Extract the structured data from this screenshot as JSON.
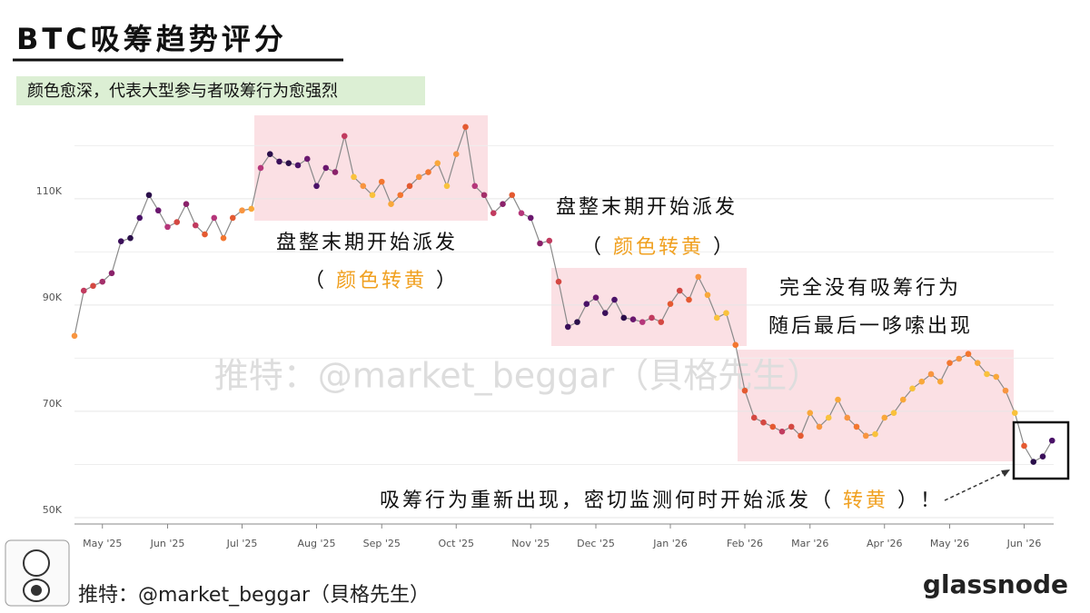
{
  "chart_data": {
    "type": "line",
    "title": "BTC吸筹趋势评分",
    "subtitle": "颜色愈深，代表大型参与者吸筹行为愈强烈",
    "watermark": "推特：@market_beggar（貝格先生）",
    "brand": "glassnode",
    "categories": [
      null,
      null,
      null,
      "May '25",
      null,
      null,
      null,
      null,
      null,
      null,
      "Jun '25",
      null,
      null,
      null,
      null,
      null,
      null,
      null,
      "Jul '25",
      null,
      null,
      null,
      null,
      null,
      null,
      null,
      "Aug '25",
      null,
      null,
      null,
      null,
      null,
      null,
      "Sep '25",
      null,
      null,
      null,
      null,
      null,
      null,
      null,
      "Oct '25",
      null,
      null,
      null,
      null,
      null,
      null,
      null,
      "Nov '25",
      null,
      null,
      null,
      null,
      null,
      null,
      "Dec '25",
      null,
      null,
      null,
      null,
      null,
      null,
      null,
      "Jan '26",
      null,
      null,
      null,
      null,
      null,
      null,
      null,
      "Feb '26",
      null,
      null,
      null,
      null,
      null,
      null,
      "Mar '26",
      null,
      null,
      null,
      null,
      null,
      null,
      null,
      "Apr '26",
      null,
      null,
      null,
      null,
      null,
      null,
      "May '26",
      null,
      null,
      null,
      null,
      null,
      null,
      null,
      "Jun '26",
      null,
      null,
      null
    ],
    "values": [
      84.2,
      92.7,
      93.6,
      94.4,
      96,
      102,
      102.6,
      106.4,
      110.7,
      107.8,
      104.7,
      105.6,
      109,
      105,
      103.3,
      106.4,
      102.6,
      106.4,
      107.8,
      108.1,
      115.8,
      118.4,
      117,
      116.7,
      116.3,
      117.5,
      112.4,
      115.8,
      115,
      121.8,
      114.1,
      112.4,
      110.7,
      113.2,
      109,
      110.7,
      112.4,
      114.1,
      115,
      116.7,
      112.4,
      118.4,
      123.5,
      112.4,
      110.7,
      107.3,
      109,
      110.7,
      107.3,
      106.4,
      101.6,
      102.1,
      94.4,
      85.9,
      86.8,
      90.2,
      91.4,
      88.5,
      91,
      87.6,
      87.3,
      86.8,
      87.6,
      86.8,
      90.2,
      92.7,
      91,
      95.3,
      91.9,
      87.6,
      88.5,
      82.5,
      73.9,
      68.8,
      67.9,
      67.1,
      66.2,
      67.1,
      65.4,
      69.7,
      67.1,
      68.8,
      72.2,
      68.8,
      67.1,
      65.4,
      65.7,
      68.8,
      69.7,
      72.2,
      74.3,
      75.6,
      77,
      75.6,
      79.1,
      79.9,
      80.8,
      79.1,
      77,
      76.5,
      73.9,
      69.7,
      63.5,
      60.5,
      61.5,
      64.5
    ],
    "point_colors": [
      "#f89540",
      "#c13b5f",
      "#d44842",
      "#a32f6a",
      "#8a226a",
      "#3b0f5a",
      "#2a0f4a",
      "#4a1268",
      "#2a0f4a",
      "#6a176e",
      "#b5367a",
      "#d44842",
      "#8a226a",
      "#c13b5f",
      "#e45a31",
      "#b5367a",
      "#f3762f",
      "#e45a31",
      "#f89540",
      "#f9a83a",
      "#b5367a",
      "#2a0f4a",
      "#3b0f5a",
      "#2a0f4a",
      "#4a1268",
      "#6a176e",
      "#4a1268",
      "#6a176e",
      "#8a226a",
      "#c13b5f",
      "#f9c23c",
      "#f89540",
      "#f9c23c",
      "#f3762f",
      "#f9a83a",
      "#f3762f",
      "#e45a31",
      "#f89540",
      "#f3762f",
      "#f9a83a",
      "#f9c23c",
      "#f89540",
      "#e45a31",
      "#b5367a",
      "#a32f6a",
      "#c13b5f",
      "#8a226a",
      "#e45a31",
      "#b5367a",
      "#6a176e",
      "#8a226a",
      "#c13b5f",
      "#d44842",
      "#3b0f5a",
      "#2a0f4a",
      "#4a1268",
      "#6a176e",
      "#3b0f5a",
      "#4a1268",
      "#2a0f4a",
      "#6a176e",
      "#b5367a",
      "#c13b5f",
      "#d44842",
      "#e45a31",
      "#d44842",
      "#e45a31",
      "#f89540",
      "#f9a83a",
      "#f9c23c",
      "#f9c23c",
      "#f3762f",
      "#e45a31",
      "#d44842",
      "#d44842",
      "#e45a31",
      "#c13b5f",
      "#d44842",
      "#e45a31",
      "#f9a83a",
      "#f89540",
      "#f9c23c",
      "#f9a83a",
      "#f89540",
      "#f3762f",
      "#f89540",
      "#f9c23c",
      "#f9a83a",
      "#f9c23c",
      "#f9a83a",
      "#f9c23c",
      "#f9a83a",
      "#f89540",
      "#f9a83a",
      "#f3762f",
      "#f89540",
      "#f3762f",
      "#f9a83a",
      "#f9c23c",
      "#f9a83a",
      "#f89540",
      "#f9c23c",
      "#e45a31",
      "#2a0f4a",
      "#3b0f5a",
      "#4a1268"
    ],
    "line_color": "#8a8a8a",
    "ylim": [
      48.8,
      124.5
    ],
    "yticks": [
      {
        "value": 50,
        "label": "50K"
      },
      {
        "value": 70,
        "label": "70K"
      },
      {
        "value": 90,
        "label": "90K"
      },
      {
        "value": 110,
        "label": "110K"
      }
    ],
    "minor_grid": [
      60,
      80,
      100,
      120
    ],
    "grid": true,
    "annotations": [
      {
        "text": "盘整末期开始派发",
        "prefix": "（ ",
        "highlight": "颜色转黄",
        "suffix": " ）"
      },
      {
        "text": "盘整末期开始派发",
        "prefix": "（ ",
        "highlight": "颜色转黄",
        "suffix": " ）"
      },
      {
        "text": "完全没有吸筹行为",
        "line2": "随后最后一哆嗦出现"
      },
      {
        "prefix": "吸筹行为重新出现，密切监测何时开始派发（ ",
        "highlight": "转黄",
        "suffix": " ）！"
      }
    ]
  }
}
